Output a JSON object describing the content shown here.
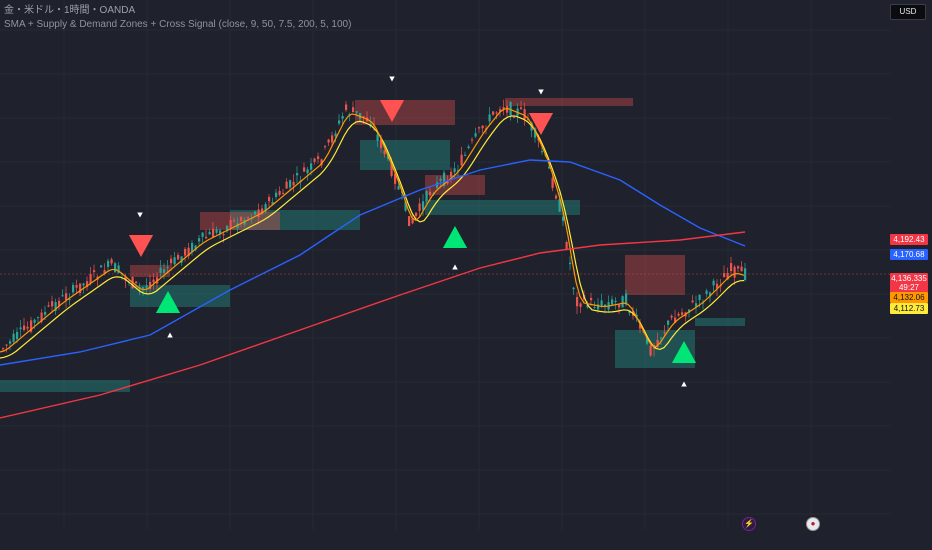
{
  "legend": {
    "symbol": "金・米ドル・1時間・OANDA",
    "indicator": "SMA + Supply & Demand Zones + Cross Signal (close, 9, 50, 7.5, 200, 5, 100)"
  },
  "currency_button": "USD",
  "price_tags": [
    {
      "value": "4,192.43",
      "color": "#f23645",
      "y": 234
    },
    {
      "value": "4,170.68",
      "color": "#2962ff",
      "y": 249
    },
    {
      "value": "4,136.335",
      "color": "#f23645",
      "y": 273
    },
    {
      "value": "49:27",
      "color": "#f23645",
      "y": 282
    },
    {
      "value": "4,132.06",
      "color": "#ff9800",
      "y": 292
    },
    {
      "value": "4,112.73",
      "color": "#ffeb3b",
      "y": 303
    }
  ],
  "colors": {
    "background": "#1f222c",
    "candle_up": "#26a69a",
    "candle_down": "#ef5350",
    "sma_fast": "#ffeb3b",
    "sma_mid": "#ff9800",
    "sma_slow": "#2962ff",
    "sma_long": "#f23645",
    "buy_signal": "#00e676",
    "sell_signal": "#ff5252"
  },
  "bottom_icons": [
    "lightning-icon",
    "flag-us-icon"
  ],
  "chart_data": {
    "type": "candlestick",
    "title": "",
    "series": [
      {
        "name": "SMA 9",
        "color": "#ffeb3b"
      },
      {
        "name": "SMA 50",
        "color": "#ff9800"
      },
      {
        "name": "SMA 200",
        "color": "#2962ff"
      },
      {
        "name": "SMA 100",
        "color": "#f23645"
      }
    ]
  }
}
